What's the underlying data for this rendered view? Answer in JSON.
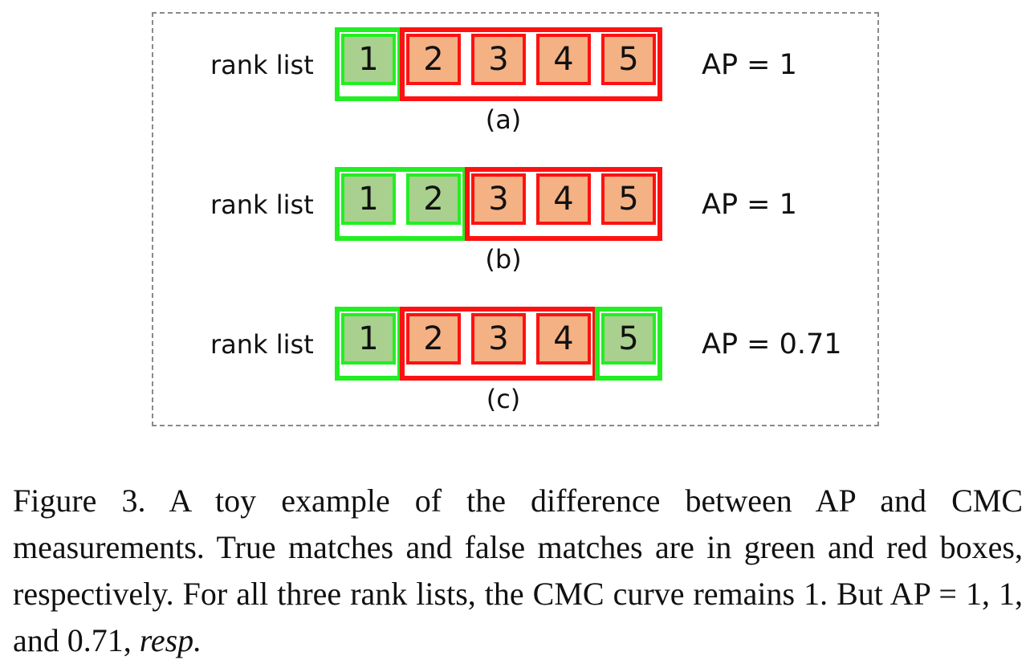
{
  "figure": {
    "rows": [
      {
        "id": "a",
        "rank_label": "rank list",
        "items": [
          {
            "rank": "1",
            "match": true
          },
          {
            "rank": "2",
            "match": false
          },
          {
            "rank": "3",
            "match": false
          },
          {
            "rank": "4",
            "match": false
          },
          {
            "rank": "5",
            "match": false
          }
        ],
        "ap_text": "AP = 1",
        "sub_label": "(a)"
      },
      {
        "id": "b",
        "rank_label": "rank list",
        "items": [
          {
            "rank": "1",
            "match": true
          },
          {
            "rank": "2",
            "match": true
          },
          {
            "rank": "3",
            "match": false
          },
          {
            "rank": "4",
            "match": false
          },
          {
            "rank": "5",
            "match": false
          }
        ],
        "ap_text": "AP = 1",
        "sub_label": "(b)"
      },
      {
        "id": "c",
        "rank_label": "rank list",
        "items": [
          {
            "rank": "1",
            "match": true
          },
          {
            "rank": "2",
            "match": false
          },
          {
            "rank": "3",
            "match": false
          },
          {
            "rank": "4",
            "match": false
          },
          {
            "rank": "5",
            "match": true
          }
        ],
        "ap_text": "AP = 0.71",
        "sub_label": "(c)"
      }
    ],
    "colors": {
      "true_match_border": "#22ee22",
      "true_match_fill": "#a9d08e",
      "false_match_border": "#ff1111",
      "false_match_fill": "#f4b183"
    }
  },
  "caption": {
    "text_main": "Figure 3. A toy example of the difference between AP and CMC measurements. True matches and false matches are in green and red boxes, respectively. For all three rank lists, the CMC curve remains 1. But AP = 1, 1, and 0.71, ",
    "text_italic": "resp."
  }
}
